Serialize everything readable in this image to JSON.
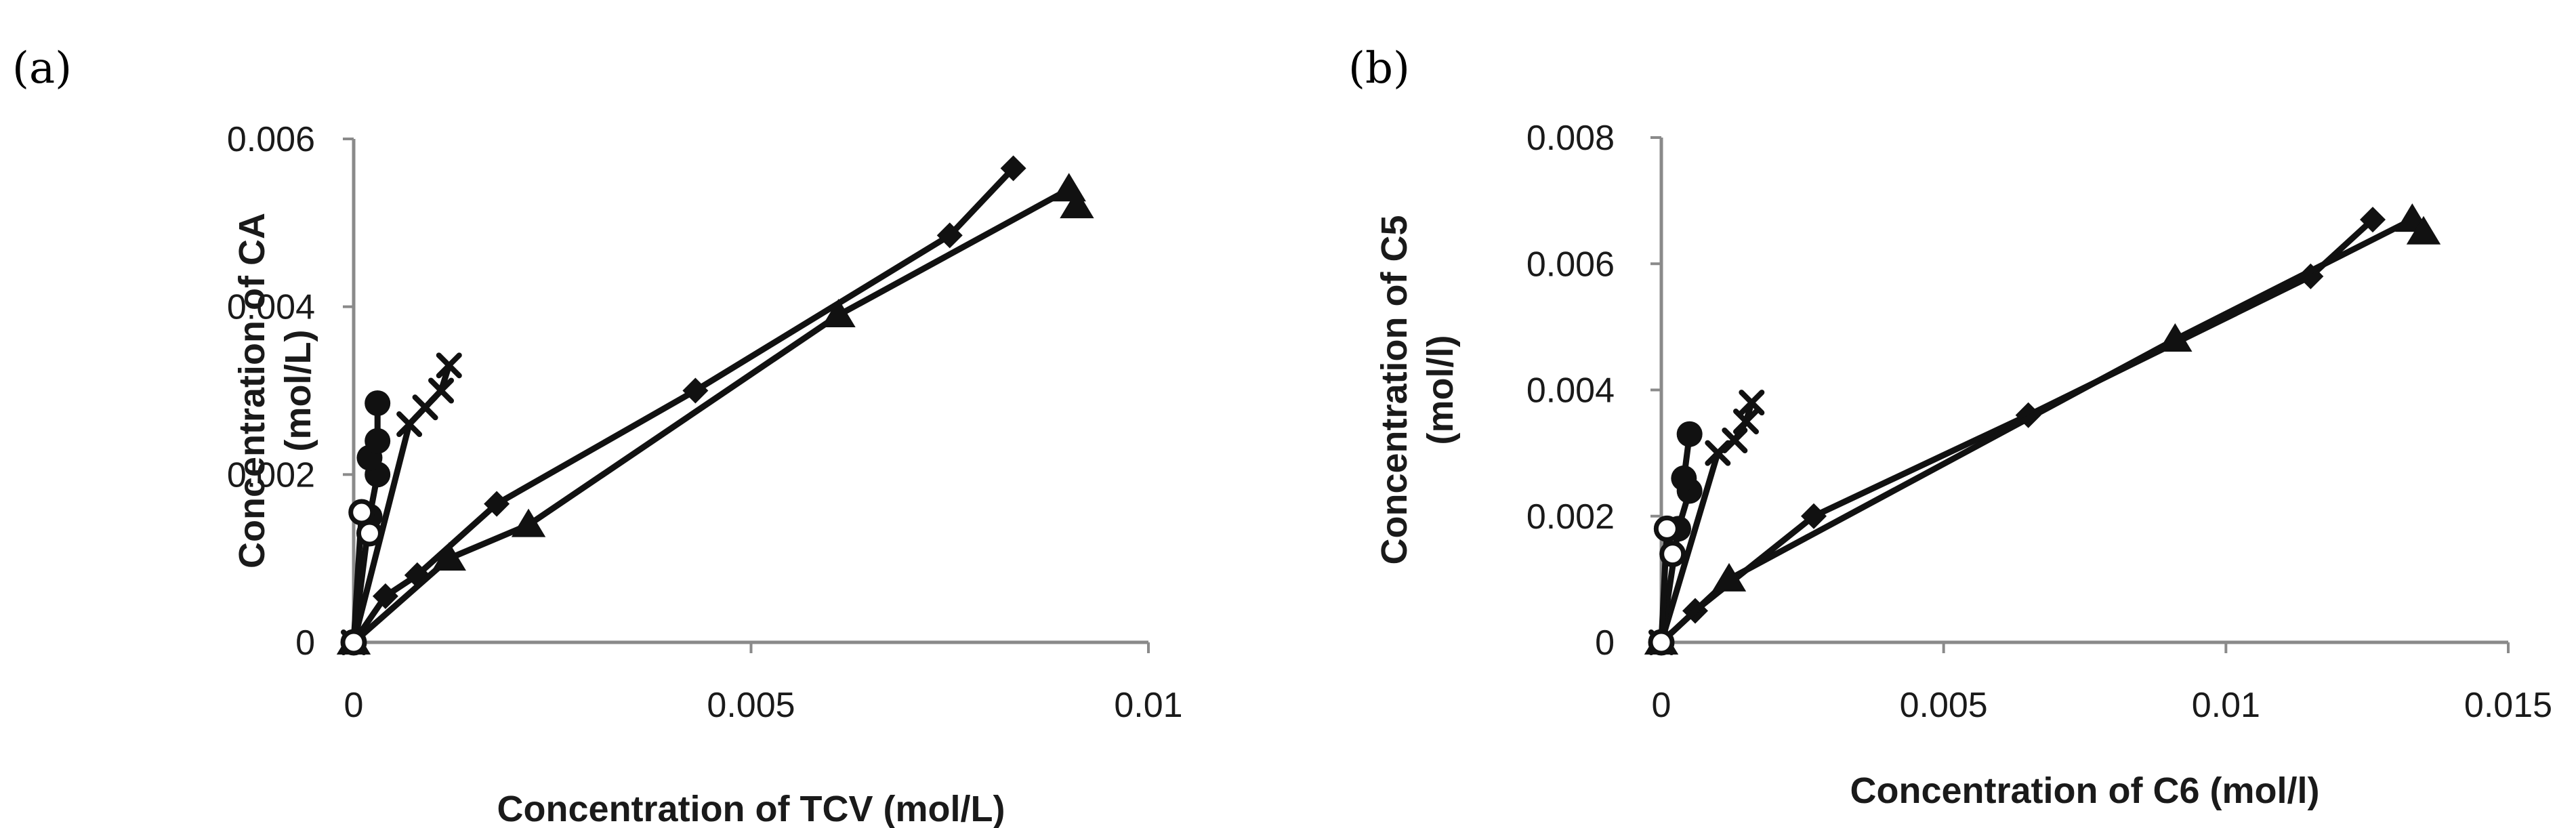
{
  "chart_data": [
    {
      "panel_label": "(a)",
      "type": "line",
      "title": "",
      "xlabel": "Concentration of TCV (mol/L)",
      "ylabel": "Concentration of CA (mol/L)",
      "ylabel_lines": [
        "Concentration of CA",
        "(mol/L)"
      ],
      "xlim": [
        0,
        0.01
      ],
      "ylim": [
        0,
        0.006
      ],
      "xticks": [
        0,
        0.005,
        0.01
      ],
      "xtick_labels": [
        "0",
        "0.005",
        "0.01"
      ],
      "yticks": [
        0,
        0.002,
        0.004,
        0.006
      ],
      "ytick_labels": [
        "0",
        "0.002",
        "0.004",
        "0.006"
      ],
      "series": [
        {
          "name": "diamond",
          "marker": "diamond",
          "x": [
            0,
            0.0004,
            0.0008,
            0.0018,
            0.0043,
            0.0075,
            0.0083
          ],
          "y": [
            0,
            0.00055,
            0.0008,
            0.00165,
            0.003,
            0.00485,
            0.00565
          ]
        },
        {
          "name": "triangle",
          "marker": "triangle",
          "x": [
            0,
            0.0012,
            0.0022,
            0.0061,
            0.009,
            0.0091
          ],
          "y": [
            0,
            0.001,
            0.0014,
            0.0039,
            0.0054,
            0.0052
          ]
        },
        {
          "name": "cross",
          "marker": "cross",
          "x": [
            0,
            0.0007,
            0.0009,
            0.0011,
            0.0012
          ],
          "y": [
            0,
            0.0026,
            0.0028,
            0.003,
            0.0033
          ]
        },
        {
          "name": "filled-circle",
          "marker": "circle",
          "x": [
            0,
            0.0002,
            0.0003,
            0.0002,
            0.0003,
            0.0003
          ],
          "y": [
            0,
            0.0015,
            0.002,
            0.0022,
            0.0024,
            0.00285
          ]
        },
        {
          "name": "open-circle",
          "marker": "open-circle",
          "x": [
            0,
            0.0001,
            0.0002
          ],
          "y": [
            0,
            0.00155,
            0.0013
          ]
        }
      ]
    },
    {
      "panel_label": "(b)",
      "type": "line",
      "title": "",
      "xlabel": "Concentration of C6 (mol/l)",
      "ylabel": "Concentration of C5 (mol/l)",
      "ylabel_lines": [
        "Concentration of C5",
        "(mol/l)"
      ],
      "xlim": [
        0,
        0.015
      ],
      "ylim": [
        0,
        0.008
      ],
      "xticks": [
        0,
        0.005,
        0.01,
        0.015
      ],
      "xtick_labels": [
        "0",
        "0.005",
        "0.01",
        "0.015"
      ],
      "yticks": [
        0,
        0.002,
        0.004,
        0.006,
        0.008
      ],
      "ytick_labels": [
        "0",
        "0.002",
        "0.004",
        "0.006",
        "0.008"
      ],
      "series": [
        {
          "name": "diamond",
          "marker": "diamond",
          "x": [
            0,
            0.0006,
            0.0027,
            0.0065,
            0.0115,
            0.0126
          ],
          "y": [
            0,
            0.0005,
            0.002,
            0.0036,
            0.0058,
            0.0067
          ]
        },
        {
          "name": "triangle",
          "marker": "triangle",
          "x": [
            0,
            0.0012,
            0.0091,
            0.0133,
            0.0135
          ],
          "y": [
            0,
            0.001,
            0.0048,
            0.0067,
            0.0065
          ]
        },
        {
          "name": "cross",
          "marker": "cross",
          "x": [
            0,
            0.001,
            0.0013,
            0.0015,
            0.0016
          ],
          "y": [
            0,
            0.003,
            0.0032,
            0.0035,
            0.0038
          ]
        },
        {
          "name": "filled-circle",
          "marker": "circle",
          "x": [
            0,
            0.0003,
            0.0005,
            0.0004,
            0.0005
          ],
          "y": [
            0,
            0.0018,
            0.0024,
            0.0026,
            0.0033
          ]
        },
        {
          "name": "open-circle",
          "marker": "open-circle",
          "x": [
            0,
            0.0001,
            0.0002
          ],
          "y": [
            0,
            0.0018,
            0.0014
          ]
        }
      ]
    }
  ]
}
